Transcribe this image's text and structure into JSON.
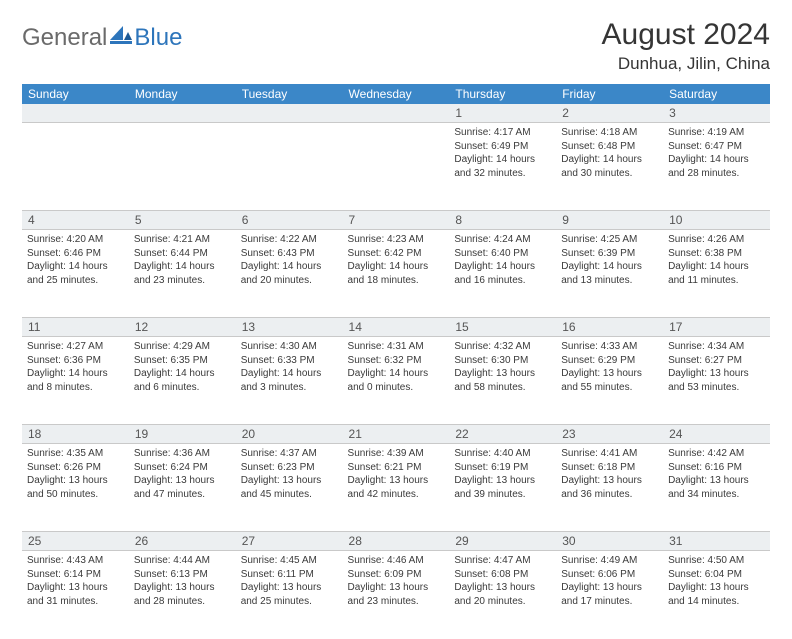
{
  "logo": {
    "part1": "General",
    "part2": "Blue"
  },
  "title": "August 2024",
  "location": "Dunhua, Jilin, China",
  "colors": {
    "header_bg": "#3b87c8",
    "header_text": "#ffffff",
    "daynum_bg": "#eceff1",
    "border": "#c9c9c9",
    "body_text": "#3a3a3a",
    "title_text": "#353535",
    "logo_gray": "#6a6a6a",
    "logo_blue": "#2d75bb"
  },
  "weekdays": [
    "Sunday",
    "Monday",
    "Tuesday",
    "Wednesday",
    "Thursday",
    "Friday",
    "Saturday"
  ],
  "weeks": [
    [
      null,
      null,
      null,
      null,
      {
        "n": "1",
        "sr": "4:17 AM",
        "ss": "6:49 PM",
        "dl": "14 hours and 32 minutes."
      },
      {
        "n": "2",
        "sr": "4:18 AM",
        "ss": "6:48 PM",
        "dl": "14 hours and 30 minutes."
      },
      {
        "n": "3",
        "sr": "4:19 AM",
        "ss": "6:47 PM",
        "dl": "14 hours and 28 minutes."
      }
    ],
    [
      {
        "n": "4",
        "sr": "4:20 AM",
        "ss": "6:46 PM",
        "dl": "14 hours and 25 minutes."
      },
      {
        "n": "5",
        "sr": "4:21 AM",
        "ss": "6:44 PM",
        "dl": "14 hours and 23 minutes."
      },
      {
        "n": "6",
        "sr": "4:22 AM",
        "ss": "6:43 PM",
        "dl": "14 hours and 20 minutes."
      },
      {
        "n": "7",
        "sr": "4:23 AM",
        "ss": "6:42 PM",
        "dl": "14 hours and 18 minutes."
      },
      {
        "n": "8",
        "sr": "4:24 AM",
        "ss": "6:40 PM",
        "dl": "14 hours and 16 minutes."
      },
      {
        "n": "9",
        "sr": "4:25 AM",
        "ss": "6:39 PM",
        "dl": "14 hours and 13 minutes."
      },
      {
        "n": "10",
        "sr": "4:26 AM",
        "ss": "6:38 PM",
        "dl": "14 hours and 11 minutes."
      }
    ],
    [
      {
        "n": "11",
        "sr": "4:27 AM",
        "ss": "6:36 PM",
        "dl": "14 hours and 8 minutes."
      },
      {
        "n": "12",
        "sr": "4:29 AM",
        "ss": "6:35 PM",
        "dl": "14 hours and 6 minutes."
      },
      {
        "n": "13",
        "sr": "4:30 AM",
        "ss": "6:33 PM",
        "dl": "14 hours and 3 minutes."
      },
      {
        "n": "14",
        "sr": "4:31 AM",
        "ss": "6:32 PM",
        "dl": "14 hours and 0 minutes."
      },
      {
        "n": "15",
        "sr": "4:32 AM",
        "ss": "6:30 PM",
        "dl": "13 hours and 58 minutes."
      },
      {
        "n": "16",
        "sr": "4:33 AM",
        "ss": "6:29 PM",
        "dl": "13 hours and 55 minutes."
      },
      {
        "n": "17",
        "sr": "4:34 AM",
        "ss": "6:27 PM",
        "dl": "13 hours and 53 minutes."
      }
    ],
    [
      {
        "n": "18",
        "sr": "4:35 AM",
        "ss": "6:26 PM",
        "dl": "13 hours and 50 minutes."
      },
      {
        "n": "19",
        "sr": "4:36 AM",
        "ss": "6:24 PM",
        "dl": "13 hours and 47 minutes."
      },
      {
        "n": "20",
        "sr": "4:37 AM",
        "ss": "6:23 PM",
        "dl": "13 hours and 45 minutes."
      },
      {
        "n": "21",
        "sr": "4:39 AM",
        "ss": "6:21 PM",
        "dl": "13 hours and 42 minutes."
      },
      {
        "n": "22",
        "sr": "4:40 AM",
        "ss": "6:19 PM",
        "dl": "13 hours and 39 minutes."
      },
      {
        "n": "23",
        "sr": "4:41 AM",
        "ss": "6:18 PM",
        "dl": "13 hours and 36 minutes."
      },
      {
        "n": "24",
        "sr": "4:42 AM",
        "ss": "6:16 PM",
        "dl": "13 hours and 34 minutes."
      }
    ],
    [
      {
        "n": "25",
        "sr": "4:43 AM",
        "ss": "6:14 PM",
        "dl": "13 hours and 31 minutes."
      },
      {
        "n": "26",
        "sr": "4:44 AM",
        "ss": "6:13 PM",
        "dl": "13 hours and 28 minutes."
      },
      {
        "n": "27",
        "sr": "4:45 AM",
        "ss": "6:11 PM",
        "dl": "13 hours and 25 minutes."
      },
      {
        "n": "28",
        "sr": "4:46 AM",
        "ss": "6:09 PM",
        "dl": "13 hours and 23 minutes."
      },
      {
        "n": "29",
        "sr": "4:47 AM",
        "ss": "6:08 PM",
        "dl": "13 hours and 20 minutes."
      },
      {
        "n": "30",
        "sr": "4:49 AM",
        "ss": "6:06 PM",
        "dl": "13 hours and 17 minutes."
      },
      {
        "n": "31",
        "sr": "4:50 AM",
        "ss": "6:04 PM",
        "dl": "13 hours and 14 minutes."
      }
    ]
  ],
  "labels": {
    "sunrise": "Sunrise: ",
    "sunset": "Sunset: ",
    "daylight": "Daylight: "
  }
}
